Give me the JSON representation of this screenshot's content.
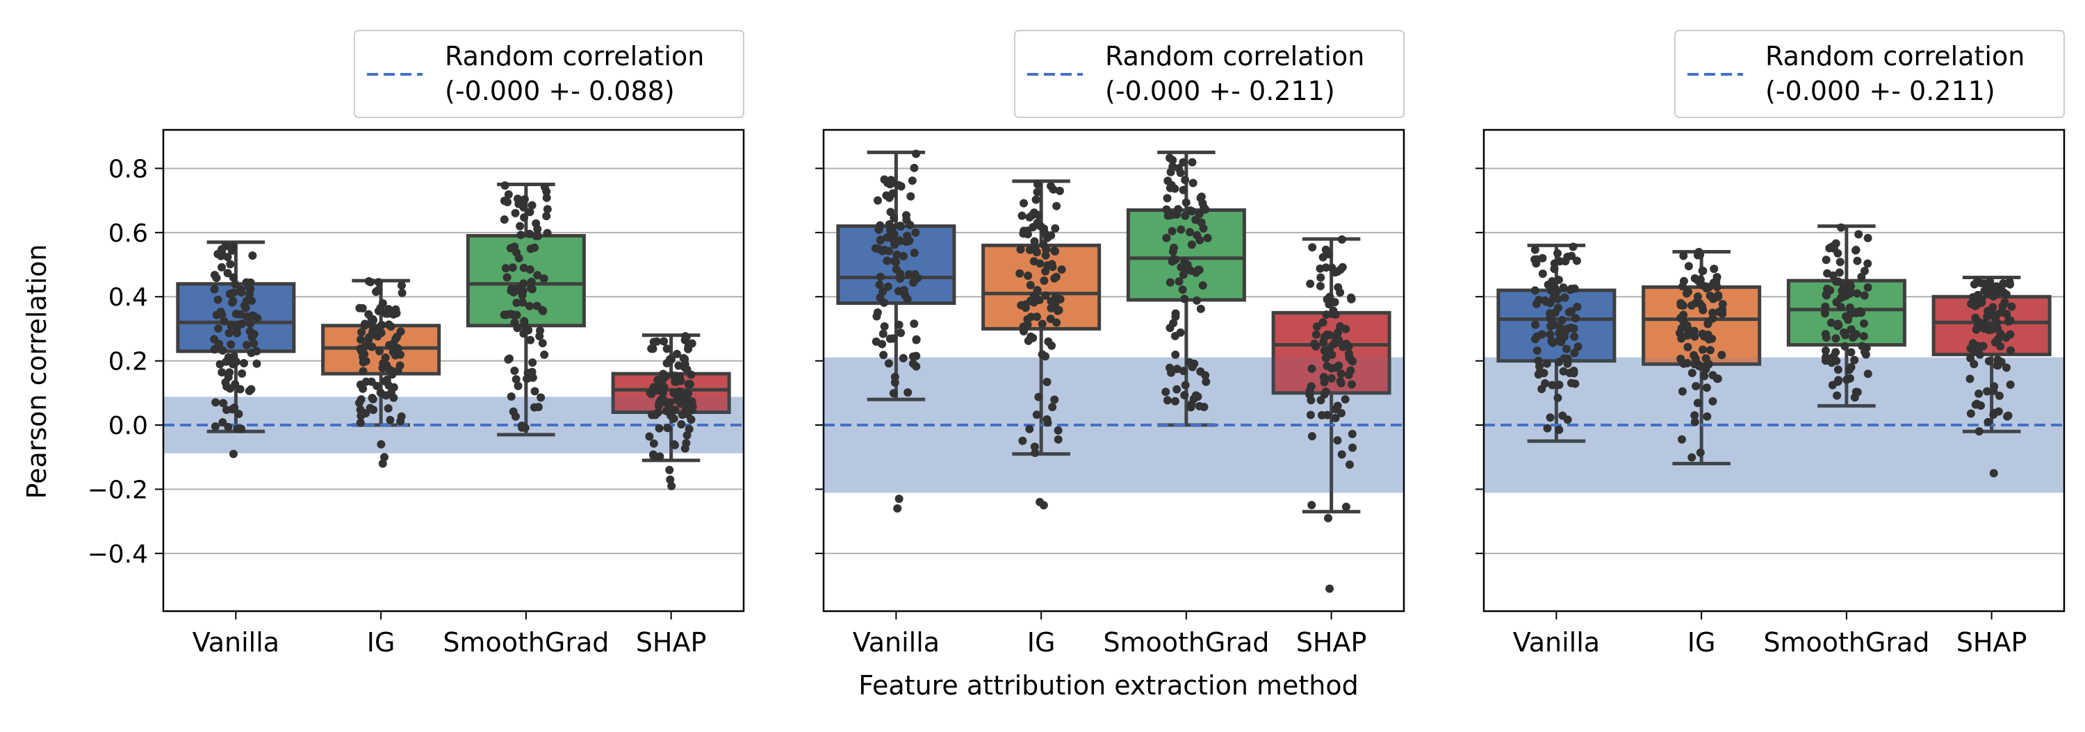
{
  "figure": {
    "ylabel": "Pearson correlation",
    "xlabel": "Feature attribution extraction method"
  },
  "chart_data": [
    {
      "type": "box",
      "title": "",
      "categories": [
        "Vanilla",
        "IG",
        "SmoothGrad",
        "SHAP"
      ],
      "colors": [
        "#4c72b0",
        "#dd8452",
        "#55a868",
        "#c44e52"
      ],
      "ylim": [
        -0.58,
        0.92
      ],
      "yticks": [
        -0.4,
        -0.2,
        0.0,
        0.2,
        0.4,
        0.6,
        0.8
      ],
      "ytick_labels": [
        "−0.4",
        "−0.2",
        "0.0",
        "0.2",
        "0.4",
        "0.6",
        "0.8"
      ],
      "grid": true,
      "legend_position": "above-right",
      "random_baseline": {
        "label": "Random correlation",
        "detail": "(-0.000 +- 0.088)",
        "mean": 0.0,
        "std": 0.088,
        "color": "#4472c4"
      },
      "boxes": [
        {
          "category": "Vanilla",
          "q1": 0.23,
          "median": 0.32,
          "q3": 0.44,
          "whisker_low": -0.02,
          "whisker_high": 0.57,
          "outliers": [
            -0.09
          ]
        },
        {
          "category": "IG",
          "q1": 0.16,
          "median": 0.24,
          "q3": 0.31,
          "whisker_low": 0.0,
          "whisker_high": 0.45,
          "outliers": [
            -0.06,
            -0.1,
            -0.12
          ]
        },
        {
          "category": "SmoothGrad",
          "q1": 0.31,
          "median": 0.44,
          "q3": 0.59,
          "whisker_low": -0.03,
          "whisker_high": 0.75,
          "outliers": []
        },
        {
          "category": "SHAP",
          "q1": 0.04,
          "median": 0.11,
          "q3": 0.16,
          "whisker_low": -0.11,
          "whisker_high": 0.28,
          "outliers": [
            -0.14,
            -0.17,
            -0.19
          ]
        }
      ]
    },
    {
      "type": "box",
      "title": "",
      "categories": [
        "Vanilla",
        "IG",
        "SmoothGrad",
        "SHAP"
      ],
      "colors": [
        "#4c72b0",
        "#dd8452",
        "#55a868",
        "#c44e52"
      ],
      "ylim": [
        -0.58,
        0.92
      ],
      "yticks": [
        -0.4,
        -0.2,
        0.0,
        0.2,
        0.4,
        0.6,
        0.8
      ],
      "ytick_labels": [],
      "grid": true,
      "legend_position": "above-right",
      "random_baseline": {
        "label": "Random correlation",
        "detail": "(-0.000 +- 0.211)",
        "mean": 0.0,
        "std": 0.211,
        "color": "#4472c4"
      },
      "boxes": [
        {
          "category": "Vanilla",
          "q1": 0.38,
          "median": 0.46,
          "q3": 0.62,
          "whisker_low": 0.08,
          "whisker_high": 0.85,
          "outliers": [
            -0.23,
            -0.26
          ]
        },
        {
          "category": "IG",
          "q1": 0.3,
          "median": 0.41,
          "q3": 0.56,
          "whisker_low": -0.09,
          "whisker_high": 0.76,
          "outliers": [
            -0.24,
            -0.25
          ]
        },
        {
          "category": "SmoothGrad",
          "q1": 0.39,
          "median": 0.52,
          "q3": 0.67,
          "whisker_low": 0.0,
          "whisker_high": 0.85,
          "outliers": []
        },
        {
          "category": "SHAP",
          "q1": 0.1,
          "median": 0.25,
          "q3": 0.35,
          "whisker_low": -0.27,
          "whisker_high": 0.58,
          "outliers": [
            -0.29,
            -0.51
          ]
        }
      ]
    },
    {
      "type": "box",
      "title": "",
      "categories": [
        "Vanilla",
        "IG",
        "SmoothGrad",
        "SHAP"
      ],
      "colors": [
        "#4c72b0",
        "#dd8452",
        "#55a868",
        "#c44e52"
      ],
      "ylim": [
        -0.58,
        0.92
      ],
      "yticks": [
        -0.4,
        -0.2,
        0.0,
        0.2,
        0.4,
        0.6,
        0.8
      ],
      "ytick_labels": [],
      "grid": true,
      "legend_position": "above-right",
      "random_baseline": {
        "label": "Random correlation",
        "detail": "(-0.000 +- 0.211)",
        "mean": 0.0,
        "std": 0.211,
        "color": "#4472c4"
      },
      "boxes": [
        {
          "category": "Vanilla",
          "q1": 0.2,
          "median": 0.33,
          "q3": 0.42,
          "whisker_low": -0.05,
          "whisker_high": 0.56,
          "outliers": []
        },
        {
          "category": "IG",
          "q1": 0.19,
          "median": 0.33,
          "q3": 0.43,
          "whisker_low": -0.12,
          "whisker_high": 0.54,
          "outliers": []
        },
        {
          "category": "SmoothGrad",
          "q1": 0.25,
          "median": 0.36,
          "q3": 0.45,
          "whisker_low": 0.06,
          "whisker_high": 0.62,
          "outliers": []
        },
        {
          "category": "SHAP",
          "q1": 0.22,
          "median": 0.32,
          "q3": 0.4,
          "whisker_low": -0.02,
          "whisker_high": 0.46,
          "outliers": [
            -0.15
          ]
        }
      ]
    }
  ]
}
